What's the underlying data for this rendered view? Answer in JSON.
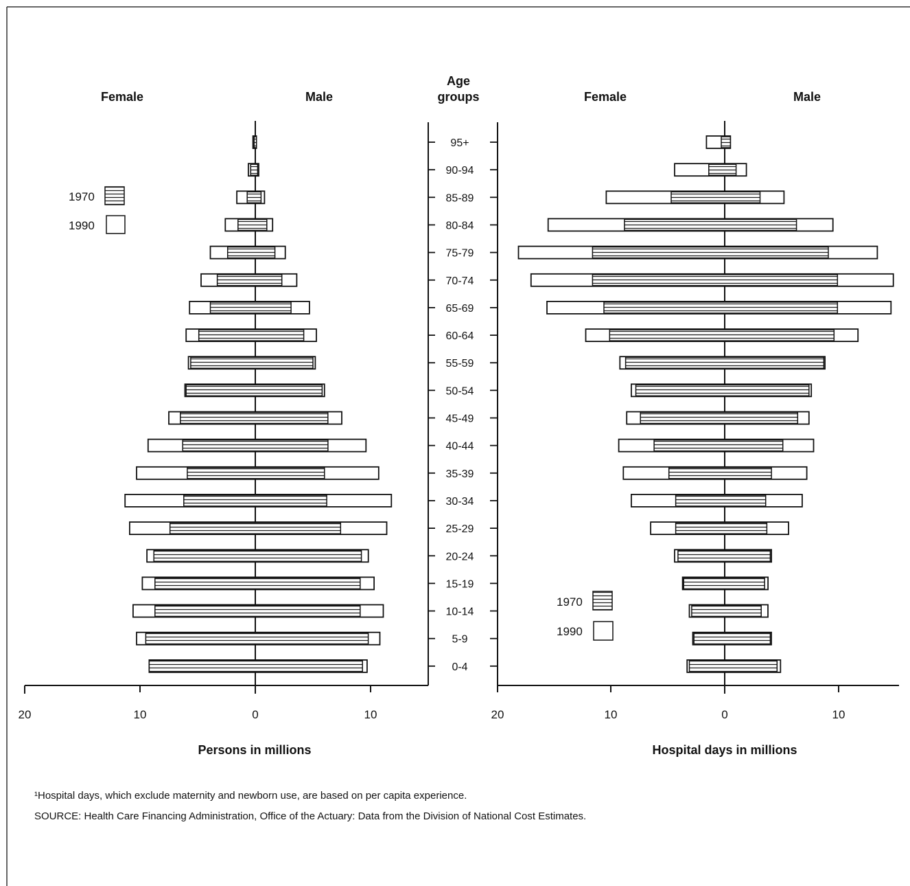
{
  "age_groups_label": [
    "Age",
    "groups"
  ],
  "legend": [
    "1970",
    "1990"
  ],
  "footnote": "¹Hospital days, which exclude maternity and newborn use, are based on per capita experience.",
  "source": "SOURCE: Health Care Financing Administration, Office of the Actuary: Data from the Division of National Cost Estimates.",
  "chart_data": [
    {
      "type": "bar",
      "subtype": "population-pyramid",
      "categories": [
        "95+",
        "90-94",
        "85-89",
        "80-84",
        "75-79",
        "70-74",
        "65-69",
        "60-64",
        "55-59",
        "50-54",
        "45-49",
        "40-44",
        "35-39",
        "30-34",
        "25-29",
        "20-24",
        "15-19",
        "10-14",
        "5-9",
        "0-4"
      ],
      "left_label": "Female",
      "right_label": "Male",
      "xlabel": "Persons in millions",
      "xticks_left": [
        "20",
        "10",
        "0"
      ],
      "xticks_right": [
        "10"
      ],
      "xlim": [
        20,
        15
      ],
      "series": [
        {
          "name": "1970",
          "female": [
            0.1,
            0.4,
            0.7,
            1.5,
            2.4,
            3.3,
            3.9,
            4.9,
            5.6,
            6.0,
            6.5,
            6.3,
            5.9,
            6.2,
            7.4,
            8.8,
            8.7,
            8.7,
            9.5,
            9.2
          ],
          "male": [
            0.1,
            0.2,
            0.5,
            1.0,
            1.7,
            2.3,
            3.1,
            4.2,
            5.0,
            5.8,
            6.3,
            6.3,
            6.0,
            6.2,
            7.4,
            9.2,
            9.1,
            9.1,
            9.8,
            9.3
          ]
        },
        {
          "name": "1990",
          "female": [
            0.2,
            0.6,
            1.6,
            2.6,
            3.9,
            4.7,
            5.7,
            6.0,
            5.8,
            6.1,
            7.5,
            9.3,
            10.3,
            11.3,
            10.9,
            9.4,
            9.8,
            10.6,
            10.3,
            9.2
          ],
          "male": [
            0.1,
            0.3,
            0.8,
            1.5,
            2.6,
            3.6,
            4.7,
            5.3,
            5.2,
            6.0,
            7.5,
            9.6,
            10.7,
            11.8,
            11.4,
            9.8,
            10.3,
            11.1,
            10.8,
            9.7
          ]
        }
      ]
    },
    {
      "type": "bar",
      "subtype": "population-pyramid",
      "categories": [
        "95+",
        "90-94",
        "85-89",
        "80-84",
        "75-79",
        "70-74",
        "65-69",
        "60-64",
        "55-59",
        "50-54",
        "45-49",
        "40-44",
        "35-39",
        "30-34",
        "25-29",
        "20-24",
        "15-19",
        "10-14",
        "5-9",
        "0-4"
      ],
      "left_label": "Female",
      "right_label": "Male",
      "xlabel": "Hospital days in millions",
      "xticks_left": [
        "20",
        "10",
        "0"
      ],
      "xticks_right": [
        "10"
      ],
      "xlim": [
        20,
        15
      ],
      "series": [
        {
          "name": "1970",
          "female": [
            0.3,
            1.4,
            4.7,
            8.8,
            11.6,
            11.6,
            10.6,
            10.1,
            8.7,
            7.8,
            7.4,
            6.2,
            4.9,
            4.3,
            4.3,
            4.1,
            3.6,
            2.9,
            2.7,
            3.1
          ],
          "male": [
            0.5,
            1.0,
            3.1,
            6.3,
            9.1,
            9.9,
            9.9,
            9.6,
            8.7,
            7.4,
            6.4,
            5.1,
            4.1,
            3.6,
            3.7,
            4.0,
            3.5,
            3.2,
            4.0,
            4.6
          ]
        },
        {
          "name": "1990",
          "female": [
            1.6,
            4.4,
            10.4,
            15.5,
            18.1,
            17.0,
            15.6,
            12.2,
            9.2,
            8.2,
            8.6,
            9.3,
            8.9,
            8.2,
            6.5,
            4.4,
            3.7,
            3.1,
            2.8,
            3.3
          ],
          "male": [
            0.5,
            1.9,
            5.2,
            9.5,
            13.4,
            14.8,
            14.6,
            11.7,
            8.8,
            7.6,
            7.4,
            7.8,
            7.2,
            6.8,
            5.6,
            4.1,
            3.8,
            3.8,
            4.1,
            4.9
          ]
        }
      ]
    }
  ]
}
